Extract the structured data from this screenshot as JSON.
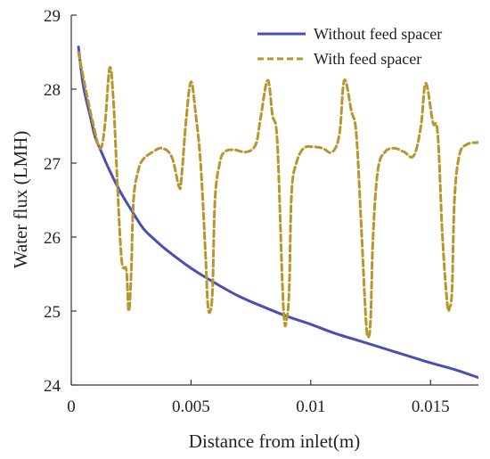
{
  "chart_data": {
    "type": "line",
    "xlabel": "Distance from inlet(m)",
    "ylabel": "Water  flux (LMH)",
    "xlim": [
      0,
      0.017
    ],
    "ylim": [
      24,
      29
    ],
    "x_ticks": [
      0,
      0.005,
      0.01,
      0.015
    ],
    "x_tick_labels": [
      "0",
      "0.005",
      "0.01",
      "0.015"
    ],
    "y_ticks": [
      24,
      25,
      26,
      27,
      28,
      29
    ],
    "y_tick_labels": [
      "24",
      "25",
      "26",
      "27",
      "28",
      "29"
    ],
    "grid": false,
    "legend_position": "top-right",
    "series": [
      {
        "name": "Without feed spacer",
        "style": "solid",
        "color": "#4a4fb5",
        "x": [
          0.0003,
          0.0005,
          0.0008,
          0.001,
          0.0013,
          0.0015,
          0.002,
          0.0025,
          0.003,
          0.0035,
          0.004,
          0.005,
          0.006,
          0.007,
          0.008,
          0.009,
          0.01,
          0.011,
          0.012,
          0.013,
          0.014,
          0.015,
          0.016,
          0.017
        ],
        "y": [
          28.57,
          28.05,
          27.62,
          27.35,
          27.12,
          26.97,
          26.64,
          26.37,
          26.12,
          25.96,
          25.82,
          25.58,
          25.38,
          25.2,
          25.06,
          24.93,
          24.82,
          24.7,
          24.6,
          24.5,
          24.4,
          24.3,
          24.21,
          24.1
        ]
      },
      {
        "name": "With feed spacer",
        "style": "dashed",
        "color": "#b8962e",
        "x": [
          0.0003,
          0.0006,
          0.0009,
          0.0012,
          0.0014,
          0.0016,
          0.00175,
          0.0019,
          0.0021,
          0.0023,
          0.0024,
          0.0025,
          0.0026,
          0.0028,
          0.003,
          0.0034,
          0.0038,
          0.0042,
          0.0045,
          0.0046,
          0.0048,
          0.005,
          0.0052,
          0.0054,
          0.0056,
          0.0057,
          0.0058,
          0.0059,
          0.006,
          0.0062,
          0.0064,
          0.0068,
          0.0073,
          0.0077,
          0.0079,
          0.0082,
          0.0084,
          0.0086,
          0.0088,
          0.0089,
          0.009,
          0.0091,
          0.0092,
          0.0094,
          0.0097,
          0.0101,
          0.0105,
          0.0109,
          0.0112,
          0.0114,
          0.0117,
          0.0119,
          0.0121,
          0.0123,
          0.0124,
          0.0125,
          0.0126,
          0.0128,
          0.0131,
          0.0135,
          0.0139,
          0.0143,
          0.0146,
          0.0148,
          0.0151,
          0.0153,
          0.0155,
          0.0157,
          0.0158,
          0.0159,
          0.016,
          0.0162,
          0.0165,
          0.017
        ],
        "y": [
          28.5,
          28.0,
          27.55,
          27.2,
          27.5,
          28.28,
          27.9,
          26.9,
          25.7,
          25.55,
          25.0,
          25.5,
          26.5,
          26.9,
          27.05,
          27.15,
          27.2,
          27.08,
          26.68,
          26.8,
          27.6,
          28.1,
          27.65,
          27.0,
          25.8,
          25.1,
          25.0,
          25.3,
          26.5,
          27.0,
          27.15,
          27.18,
          27.15,
          27.25,
          27.6,
          28.12,
          27.65,
          27.3,
          25.5,
          24.85,
          24.9,
          25.3,
          26.6,
          27.0,
          27.2,
          27.22,
          27.2,
          27.15,
          27.4,
          28.12,
          27.7,
          27.4,
          26.2,
          24.9,
          24.65,
          24.9,
          26.0,
          26.9,
          27.15,
          27.2,
          27.15,
          27.1,
          27.5,
          28.08,
          27.55,
          27.4,
          26.0,
          25.1,
          25.05,
          25.3,
          26.5,
          27.1,
          27.25,
          27.28
        ]
      }
    ]
  }
}
